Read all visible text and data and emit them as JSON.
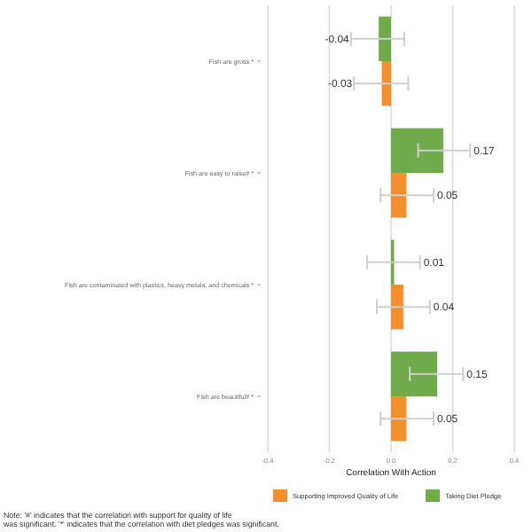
{
  "chart_data": {
    "type": "bar",
    "orientation": "horizontal",
    "xlabel": "Correlation With Action",
    "categories": [
      "Fish are gross *",
      "Fish are easy to raise# *",
      "Fish are contaminated with plastics, heavy metals, and chemicals *",
      "Fish are beautiful# *"
    ],
    "series": [
      {
        "name": "Supporting Improved Quality of Life",
        "color": "#f58f2a",
        "values": [
          -0.03,
          0.05,
          0.04,
          0.05
        ],
        "errors": [
          [
            -0.12,
            0.056
          ],
          [
            -0.034,
            0.138
          ],
          [
            -0.046,
            0.126
          ],
          [
            -0.034,
            0.138
          ]
        ]
      },
      {
        "name": "Taking Diet Pledge",
        "color": "#6fab4b",
        "values": [
          -0.04,
          0.17,
          0.01,
          0.15
        ],
        "errors": [
          [
            -0.13,
            0.043
          ],
          [
            0.088,
            0.257
          ],
          [
            -0.078,
            0.094
          ],
          [
            0.061,
            0.234
          ]
        ]
      }
    ],
    "data_labels": true,
    "xlim": [
      -0.4,
      0.4
    ],
    "xticks": [
      -0.4,
      -0.2,
      {
        "value": 0,
        "label": "0.0"
      },
      0.2,
      0.4
    ],
    "grid": "x",
    "legend": "bottom",
    "annotations": [
      "Note: '#' indicates that the correlation with support for quality of life was significant. '*' indicates that the correlation with diet pledges was significant."
    ]
  }
}
